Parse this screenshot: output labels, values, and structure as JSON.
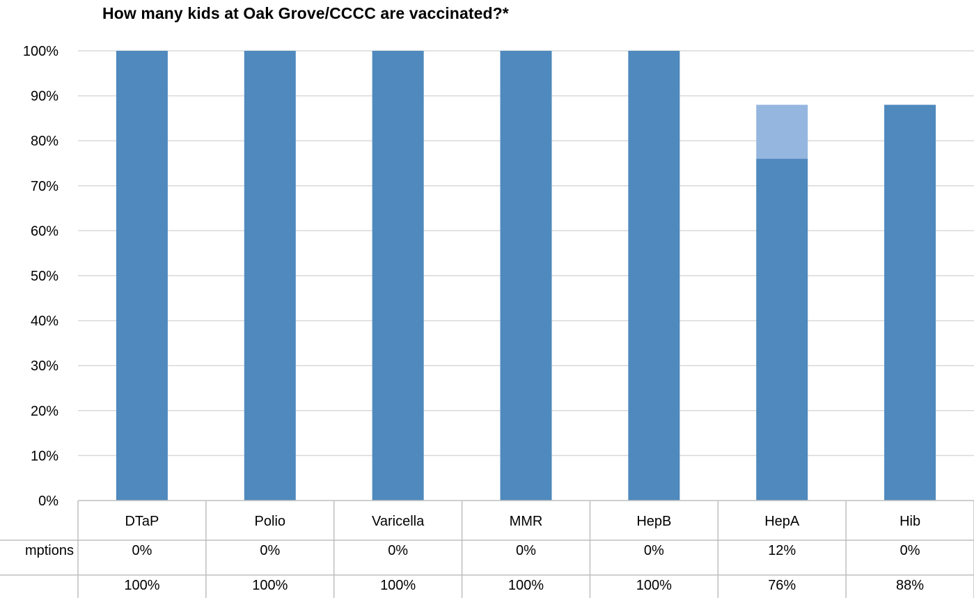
{
  "chart_data": {
    "type": "bar",
    "stacked": true,
    "title": "How many kids at Oak Grove/CCCC are vaccinated?*",
    "categories": [
      "DTaP",
      "Polio",
      "Varicella",
      "MMR",
      "HepB",
      "HepA",
      "Hib"
    ],
    "series": [
      {
        "values": [
          100,
          100,
          100,
          100,
          100,
          76,
          88
        ],
        "color": "#4F89BD"
      },
      {
        "values": [
          0,
          0,
          0,
          0,
          0,
          12,
          0
        ],
        "color": "#95B6DF"
      }
    ],
    "ylim": [
      0,
      100
    ],
    "yticks": [
      "0%",
      "10%",
      "20%",
      "30%",
      "40%",
      "50%",
      "60%",
      "70%",
      "80%",
      "90%",
      "100%"
    ],
    "grid": true,
    "data_table": {
      "row_labels": [
        "mptions",
        ""
      ],
      "rows": [
        [
          "0%",
          "0%",
          "0%",
          "0%",
          "0%",
          "12%",
          "0%"
        ],
        [
          "100%",
          "100%",
          "100%",
          "100%",
          "100%",
          "76%",
          "88%"
        ]
      ]
    }
  }
}
